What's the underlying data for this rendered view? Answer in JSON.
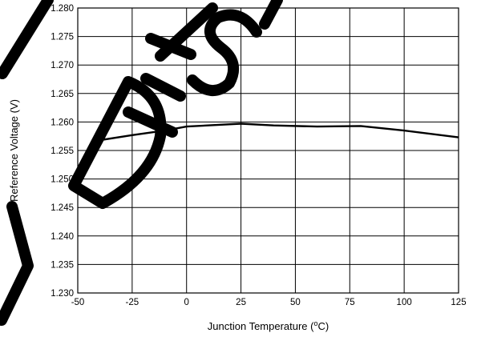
{
  "chart_data": {
    "type": "line",
    "xlabel": "Junction Temperature (",
    "xlabel_sup": "o",
    "xlabel_tail": "C)",
    "ylabel": "Reference Voltage (V)",
    "xlim": [
      -50,
      125
    ],
    "ylim": [
      1.23,
      1.28
    ],
    "x_ticks": [
      "-50",
      "-25",
      "0",
      "25",
      "50",
      "75",
      "100",
      "125"
    ],
    "y_ticks": [
      "1.230",
      "1.235",
      "1.240",
      "1.245",
      "1.250",
      "1.255",
      "1.260",
      "1.265",
      "1.270",
      "1.275",
      "1.280"
    ],
    "grid": true,
    "series": [
      {
        "x": [
          -40,
          -25,
          -10,
          0,
          25,
          40,
          60,
          80,
          100,
          125
        ],
        "y": [
          1.2568,
          1.2577,
          1.2585,
          1.2592,
          1.2597,
          1.2594,
          1.2592,
          1.2593,
          1.2585,
          1.2573
        ]
      }
    ]
  },
  "watermark": {
    "text": "DESI",
    "color": "#000000"
  }
}
